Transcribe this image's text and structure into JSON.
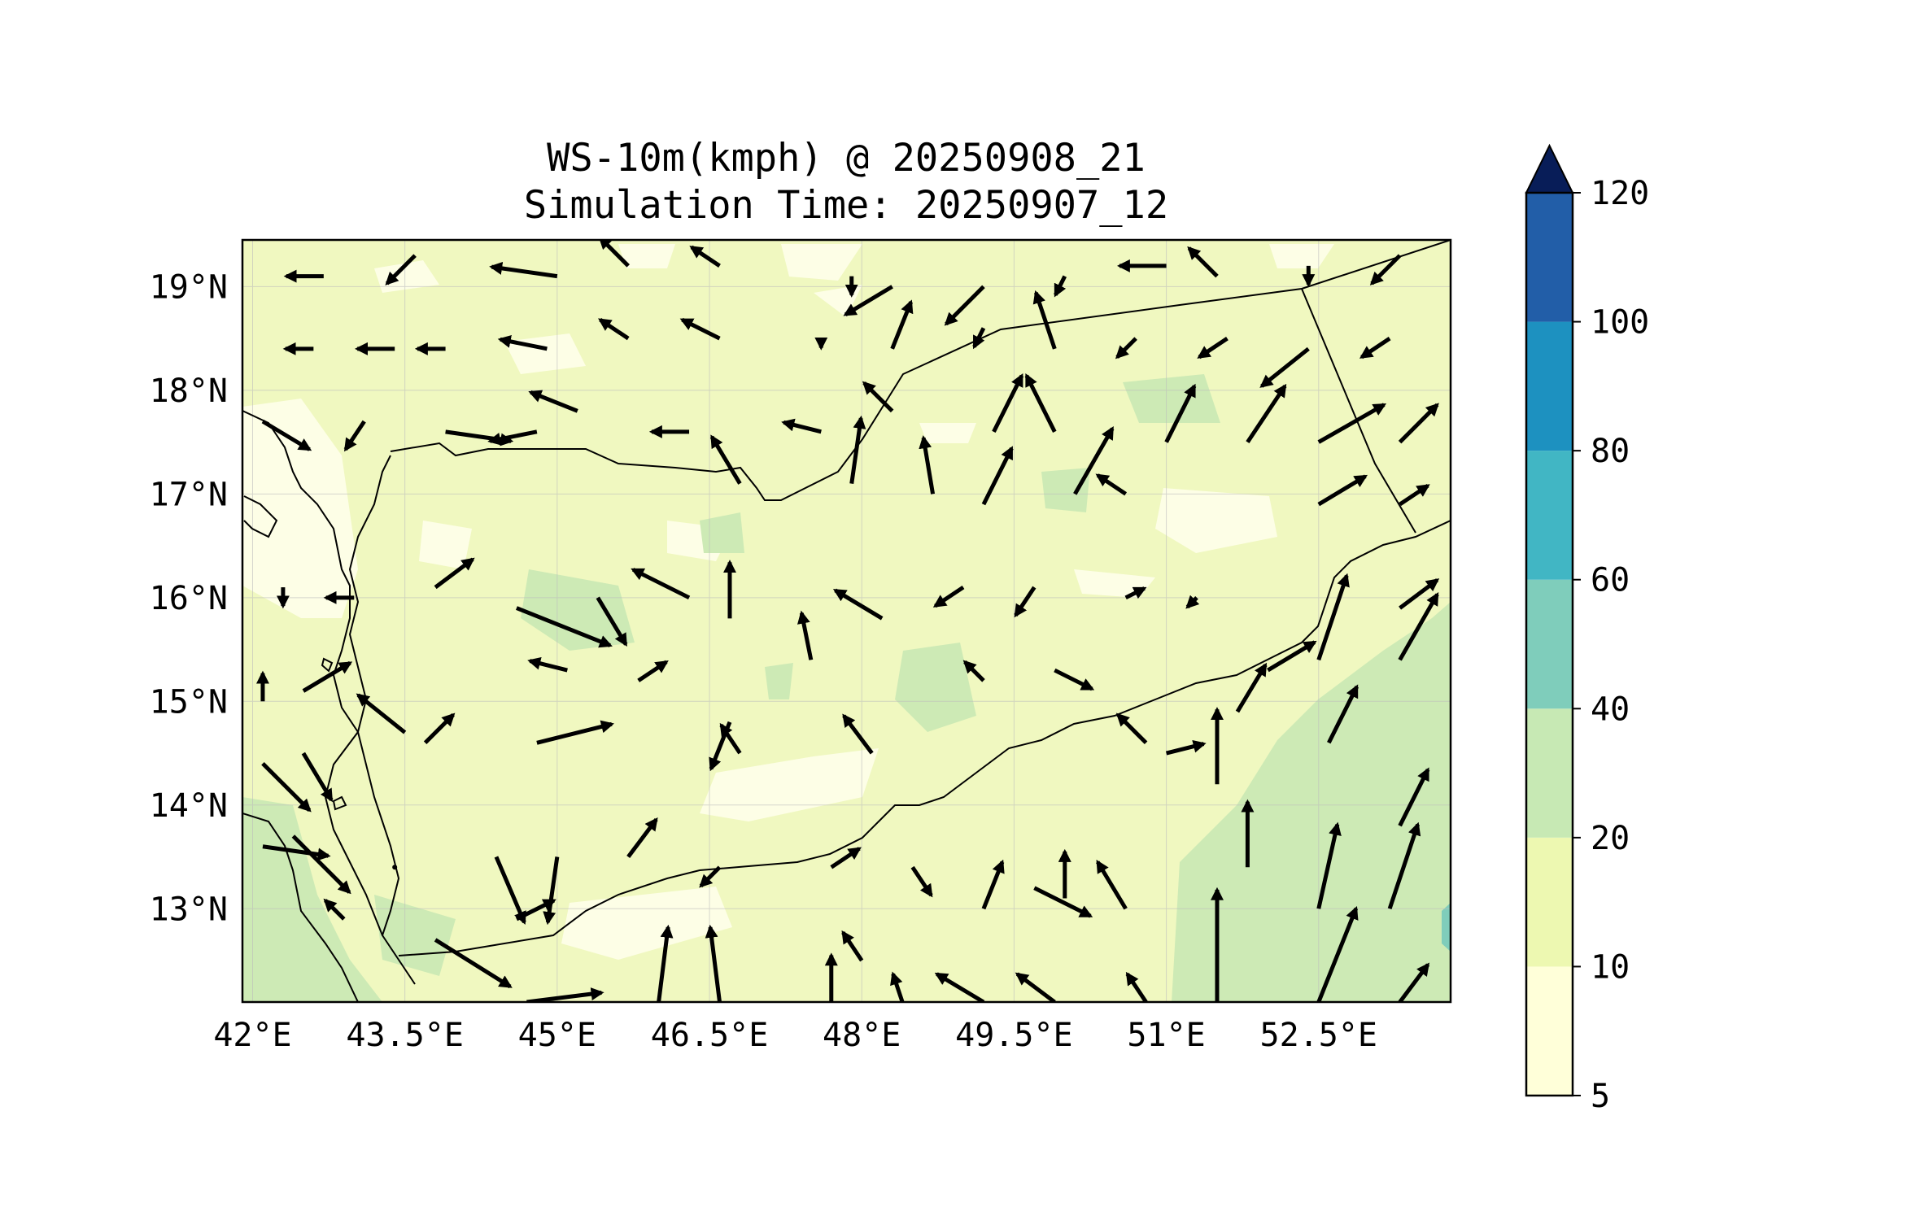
{
  "title": {
    "line1": "WS-10m(kmph) @ 20250908_21",
    "line2": "Simulation Time: 20250907_12"
  },
  "map": {
    "lon_range": [
      41.9,
      53.8
    ],
    "lat_range": [
      12.1,
      19.45
    ],
    "lon_ticks": [
      {
        "value": 42,
        "label": "42°E"
      },
      {
        "value": 43.5,
        "label": "43.5°E"
      },
      {
        "value": 45,
        "label": "45°E"
      },
      {
        "value": 46.5,
        "label": "46.5°E"
      },
      {
        "value": 48,
        "label": "48°E"
      },
      {
        "value": 49.5,
        "label": "49.5°E"
      },
      {
        "value": 51,
        "label": "51°E"
      },
      {
        "value": 52.5,
        "label": "52.5°E"
      }
    ],
    "lat_ticks": [
      {
        "value": 19,
        "label": "19°N"
      },
      {
        "value": 18,
        "label": "18°N"
      },
      {
        "value": 17,
        "label": "17°N"
      },
      {
        "value": 16,
        "label": "16°N"
      },
      {
        "value": 15,
        "label": "15°N"
      },
      {
        "value": 14,
        "label": "14°N"
      },
      {
        "value": 13,
        "label": "13°N"
      }
    ],
    "grid": true
  },
  "colorbar": {
    "levels": [
      {
        "value": 5,
        "label": "5"
      },
      {
        "value": 10,
        "label": "10"
      },
      {
        "value": 20,
        "label": "20"
      },
      {
        "value": 40,
        "label": "40"
      },
      {
        "value": 60,
        "label": "60"
      },
      {
        "value": 80,
        "label": "80"
      },
      {
        "value": 100,
        "label": "100"
      },
      {
        "value": 120,
        "label": "120"
      }
    ],
    "colors": [
      "#ffffd9",
      "#edf8b1",
      "#c7e9b4",
      "#7fcdbb",
      "#41b6c4",
      "#1d91c0",
      "#225ea8",
      "#253494"
    ],
    "extend_color": "#081d58",
    "extend": "max"
  },
  "chart_data": {
    "type": "map",
    "variable": "WS-10m(kmph)",
    "vectors": [
      [
        42.7,
        19.1,
        -0.4,
        0
      ],
      [
        43.6,
        19.3,
        -0.3,
        -0.3
      ],
      [
        45.0,
        19.1,
        -0.7,
        0.1
      ],
      [
        45.7,
        19.2,
        -0.3,
        0.3
      ],
      [
        46.6,
        19.2,
        -0.3,
        0.2
      ],
      [
        47.9,
        19.1,
        0,
        -0.2
      ],
      [
        48.3,
        19.0,
        -0.5,
        -0.3
      ],
      [
        49.2,
        19.0,
        -0.4,
        -0.4
      ],
      [
        50.0,
        19.1,
        -0.1,
        -0.2
      ],
      [
        51.0,
        19.2,
        -0.5,
        0
      ],
      [
        51.5,
        19.1,
        -0.3,
        0.3
      ],
      [
        52.4,
        19.2,
        0,
        -0.2
      ],
      [
        53.3,
        19.3,
        -0.3,
        -0.3
      ],
      [
        42.6,
        18.4,
        -0.3,
        0
      ],
      [
        43.4,
        18.4,
        -0.4,
        0
      ],
      [
        43.9,
        18.4,
        -0.3,
        0
      ],
      [
        44.9,
        18.4,
        -0.5,
        0.1
      ],
      [
        45.7,
        18.5,
        -0.3,
        0.2
      ],
      [
        46.6,
        18.5,
        -0.4,
        0.2
      ],
      [
        47.6,
        18.5,
        0,
        -0.1
      ],
      [
        48.3,
        18.4,
        0.2,
        0.5
      ],
      [
        49.2,
        18.6,
        -0.1,
        -0.2
      ],
      [
        49.9,
        18.4,
        -0.2,
        0.6
      ],
      [
        50.7,
        18.5,
        -0.2,
        -0.2
      ],
      [
        51.6,
        18.5,
        -0.3,
        -0.2
      ],
      [
        52.4,
        18.4,
        -0.5,
        -0.4
      ],
      [
        53.2,
        18.5,
        -0.3,
        -0.2
      ],
      [
        42.1,
        17.7,
        0.5,
        -0.3
      ],
      [
        43.1,
        17.7,
        -0.2,
        -0.3
      ],
      [
        43.9,
        17.6,
        0.7,
        -0.1
      ],
      [
        44.8,
        17.6,
        -0.5,
        -0.1
      ],
      [
        45.2,
        17.8,
        -0.5,
        0.2
      ],
      [
        46.3,
        17.6,
        -0.4,
        0
      ],
      [
        46.8,
        17.1,
        -0.3,
        0.5
      ],
      [
        47.6,
        17.6,
        -0.4,
        0.1
      ],
      [
        47.9,
        17.1,
        0.1,
        0.7
      ],
      [
        48.3,
        17.8,
        -0.3,
        0.3
      ],
      [
        48.7,
        17.0,
        -0.1,
        0.6
      ],
      [
        49.3,
        17.6,
        0.3,
        0.6
      ],
      [
        49.2,
        16.9,
        0.3,
        0.6
      ],
      [
        49.9,
        17.6,
        -0.3,
        0.6
      ],
      [
        50.1,
        17.0,
        0.4,
        0.7
      ],
      [
        50.6,
        17.0,
        -0.3,
        0.2
      ],
      [
        51.0,
        17.5,
        0.3,
        0.6
      ],
      [
        51.8,
        17.5,
        0.4,
        0.6
      ],
      [
        52.5,
        17.5,
        0.7,
        0.4
      ],
      [
        52.5,
        16.9,
        0.5,
        0.3
      ],
      [
        53.3,
        17.5,
        0.4,
        0.4
      ],
      [
        53.3,
        16.9,
        0.3,
        0.2
      ],
      [
        42.3,
        16.1,
        0,
        -0.2
      ],
      [
        43.0,
        16.0,
        -0.3,
        0
      ],
      [
        43.8,
        16.1,
        0.4,
        0.3
      ],
      [
        44.6,
        15.9,
        1.0,
        -0.4
      ],
      [
        45.4,
        16.0,
        0.3,
        -0.5
      ],
      [
        46.3,
        16.0,
        -0.6,
        0.3
      ],
      [
        46.7,
        15.8,
        0,
        0.6
      ],
      [
        47.5,
        15.4,
        -0.1,
        0.5
      ],
      [
        48.2,
        15.8,
        -0.5,
        0.3
      ],
      [
        49.0,
        16.1,
        -0.3,
        -0.2
      ],
      [
        49.7,
        16.1,
        -0.2,
        -0.3
      ],
      [
        50.6,
        16.0,
        0.2,
        0.1
      ],
      [
        51.3,
        16.0,
        -0.1,
        -0.1
      ],
      [
        52.5,
        15.4,
        0.3,
        0.9
      ],
      [
        52.6,
        14.6,
        0.3,
        0.6
      ],
      [
        53.3,
        15.4,
        0.4,
        0.7
      ],
      [
        53.3,
        15.9,
        0.4,
        0.3
      ],
      [
        42.1,
        15.0,
        0,
        0.3
      ],
      [
        42.5,
        15.1,
        0.5,
        0.3
      ],
      [
        43.5,
        14.7,
        -0.5,
        0.4
      ],
      [
        43.7,
        14.6,
        0.3,
        0.3
      ],
      [
        44.8,
        14.6,
        0.8,
        0.2
      ],
      [
        45.1,
        15.3,
        -0.4,
        0.1
      ],
      [
        45.8,
        15.2,
        0.3,
        0.2
      ],
      [
        46.7,
        14.8,
        -0.2,
        -0.5
      ],
      [
        46.8,
        14.5,
        -0.2,
        0.3
      ],
      [
        48.1,
        14.5,
        -0.3,
        0.4
      ],
      [
        49.2,
        15.2,
        -0.2,
        0.2
      ],
      [
        49.9,
        15.3,
        0.4,
        -0.2
      ],
      [
        50.8,
        14.6,
        -0.3,
        0.3
      ],
      [
        51.0,
        14.5,
        0.4,
        0.1
      ],
      [
        51.5,
        14.2,
        0,
        0.8
      ],
      [
        51.7,
        14.9,
        0.3,
        0.5
      ],
      [
        52.0,
        15.3,
        0.5,
        0.3
      ],
      [
        42.1,
        14.4,
        0.5,
        -0.5
      ],
      [
        42.5,
        14.5,
        0.3,
        -0.5
      ],
      [
        42.4,
        13.7,
        0.6,
        -0.6
      ],
      [
        42.1,
        13.6,
        0.7,
        -0.1
      ],
      [
        43.4,
        13.4,
        0,
        0
      ],
      [
        44.4,
        13.5,
        0.3,
        -0.7
      ],
      [
        45.0,
        13.5,
        -0.1,
        -0.7
      ],
      [
        45.7,
        13.5,
        0.3,
        0.4
      ],
      [
        46.6,
        13.4,
        -0.2,
        -0.2
      ],
      [
        47.7,
        13.4,
        0.3,
        0.2
      ],
      [
        48.5,
        13.4,
        0.2,
        -0.3
      ],
      [
        49.2,
        13.0,
        0.2,
        0.5
      ],
      [
        49.7,
        13.2,
        0.6,
        -0.3
      ],
      [
        50.0,
        13.1,
        0,
        0.5
      ],
      [
        50.6,
        13.0,
        -0.3,
        0.5
      ],
      [
        51.8,
        13.4,
        0,
        0.7
      ],
      [
        52.5,
        13.0,
        0.2,
        0.9
      ],
      [
        53.2,
        13.0,
        0.3,
        0.9
      ],
      [
        53.3,
        13.8,
        0.3,
        0.6
      ],
      [
        42.9,
        12.9,
        -0.2,
        0.2
      ],
      [
        43.8,
        12.7,
        0.8,
        -0.5
      ],
      [
        44.6,
        12.9,
        0.4,
        0.2
      ],
      [
        44.7,
        12.1,
        0.8,
        0.1
      ],
      [
        46.0,
        12.1,
        0.1,
        0.8
      ],
      [
        46.6,
        12.1,
        -0.1,
        0.8
      ],
      [
        47.7,
        12.1,
        0,
        0.5
      ],
      [
        48.0,
        12.5,
        -0.2,
        0.3
      ],
      [
        48.4,
        12.1,
        -0.1,
        0.3
      ],
      [
        49.2,
        12.1,
        -0.5,
        0.3
      ],
      [
        49.9,
        12.1,
        -0.4,
        0.3
      ],
      [
        50.8,
        12.1,
        -0.2,
        0.3
      ],
      [
        51.5,
        12.1,
        0,
        1.2
      ],
      [
        52.5,
        12.1,
        0.4,
        1.0
      ],
      [
        53.3,
        12.1,
        0.3,
        0.4
      ]
    ]
  }
}
